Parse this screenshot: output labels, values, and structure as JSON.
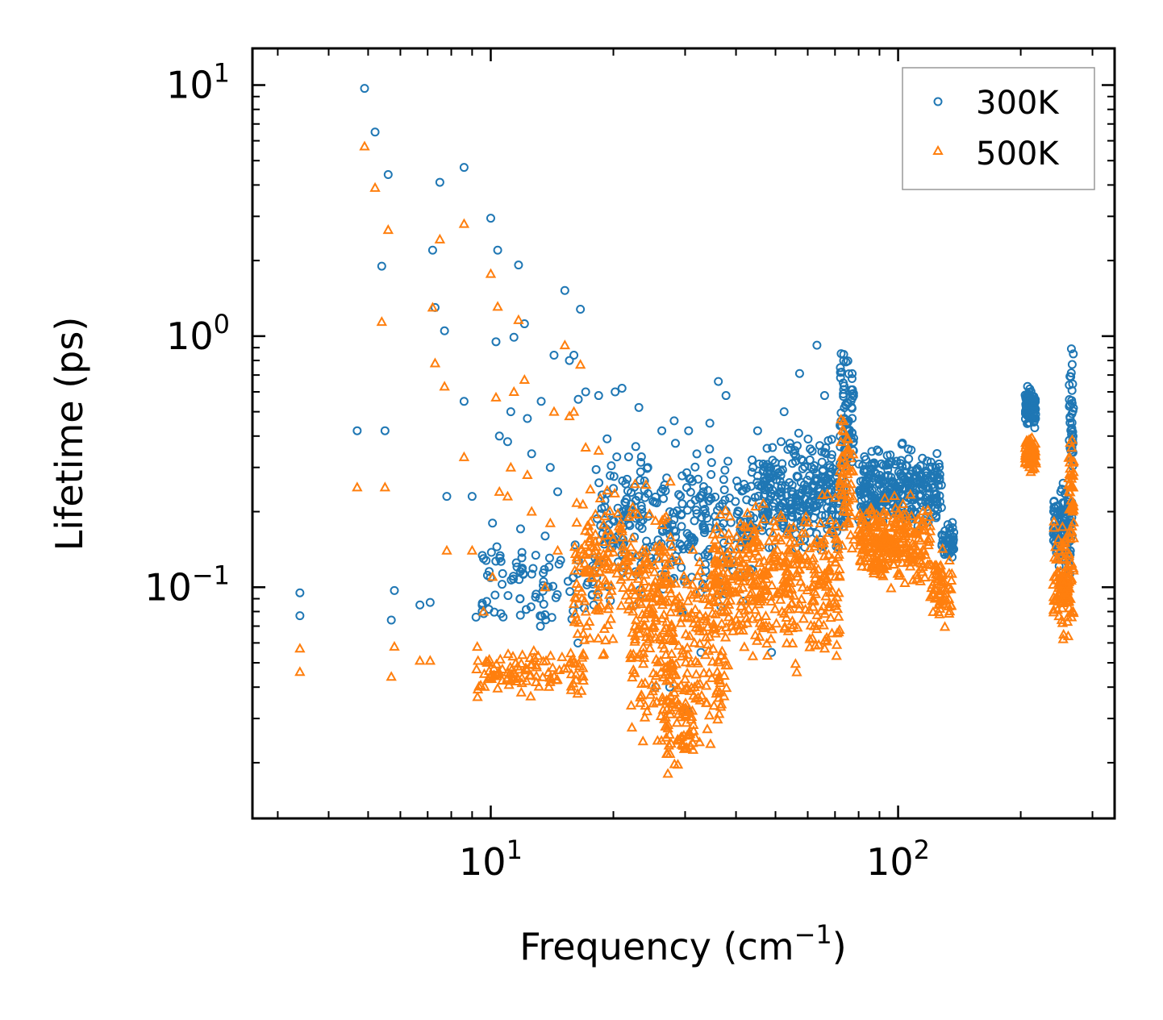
{
  "chart_data": {
    "type": "scatter",
    "xscale": "log",
    "yscale": "log",
    "xlim": [
      2.6,
      340
    ],
    "ylim": [
      0.012,
      14
    ],
    "xlabel": "Frequency (cm",
    "xlabel_sup": "−1",
    "xlabel_end": ")",
    "ylabel": "Lifetime (ps)",
    "x_major_ticks": [
      {
        "value": 10,
        "base": "10",
        "exp": "1"
      },
      {
        "value": 100,
        "base": "10",
        "exp": "2"
      }
    ],
    "y_major_ticks": [
      {
        "value": 0.1,
        "base": "10",
        "exp": "−1"
      },
      {
        "value": 1,
        "base": "10",
        "exp": "0"
      },
      {
        "value": 10,
        "base": "10",
        "exp": "1"
      }
    ],
    "legend_position": "top-right",
    "series": [
      {
        "name": "300K",
        "marker": "circle-open",
        "color": "#1f77b4",
        "clusters": [
          {
            "xmin": 18,
            "xmax": 45,
            "ymin": 0.07,
            "ymax": 0.45,
            "n": 320
          },
          {
            "xmin": 45,
            "xmax": 75,
            "ymin": 0.12,
            "ymax": 0.45,
            "n": 320
          },
          {
            "xmin": 72,
            "xmax": 78,
            "ymin": 0.2,
            "ymax": 1.05,
            "n": 70
          },
          {
            "xmin": 80,
            "xmax": 128,
            "ymin": 0.15,
            "ymax": 0.4,
            "n": 320
          },
          {
            "xmin": 128,
            "xmax": 137,
            "ymin": 0.12,
            "ymax": 0.2,
            "n": 40
          },
          {
            "xmin": 205,
            "xmax": 218,
            "ymin": 0.4,
            "ymax": 0.68,
            "n": 90
          },
          {
            "xmin": 240,
            "xmax": 268,
            "ymin": 0.1,
            "ymax": 0.3,
            "n": 120
          },
          {
            "xmin": 263,
            "xmax": 270,
            "ymin": 0.2,
            "ymax": 1.05,
            "n": 40
          },
          {
            "xmin": 9.5,
            "xmax": 18,
            "ymin": 0.055,
            "ymax": 0.2,
            "n": 90
          }
        ],
        "points": [
          [
            3.4,
            0.095
          ],
          [
            3.4,
            0.077
          ],
          [
            4.7,
            0.42
          ],
          [
            4.9,
            9.7
          ],
          [
            5.2,
            6.5
          ],
          [
            5.4,
            1.9
          ],
          [
            5.5,
            0.42
          ],
          [
            5.6,
            4.4
          ],
          [
            5.7,
            0.074
          ],
          [
            5.8,
            0.097
          ],
          [
            6.7,
            0.085
          ],
          [
            7.1,
            0.087
          ],
          [
            7.2,
            2.2
          ],
          [
            7.3,
            1.3
          ],
          [
            7.5,
            4.1
          ],
          [
            7.7,
            1.05
          ],
          [
            7.8,
            0.23
          ],
          [
            8.6,
            4.7
          ],
          [
            8.6,
            0.55
          ],
          [
            9.0,
            0.23
          ],
          [
            9.2,
            0.076
          ],
          [
            9.6,
            0.13
          ],
          [
            10.0,
            2.95
          ],
          [
            10.1,
            0.18
          ],
          [
            10.3,
            0.95
          ],
          [
            10.4,
            2.2
          ],
          [
            10.5,
            0.4
          ],
          [
            11.0,
            0.38
          ],
          [
            11.2,
            0.5
          ],
          [
            11.4,
            0.99
          ],
          [
            11.7,
            1.92
          ],
          [
            11.8,
            0.09
          ],
          [
            12.1,
            1.12
          ],
          [
            12.3,
            0.47
          ],
          [
            12.6,
            0.34
          ],
          [
            13.3,
            0.55
          ],
          [
            13.6,
            0.16
          ],
          [
            14.0,
            0.3
          ],
          [
            14.3,
            0.84
          ],
          [
            14.6,
            0.24
          ],
          [
            15.2,
            1.52
          ],
          [
            15.6,
            0.8
          ],
          [
            16.0,
            0.84
          ],
          [
            16.4,
            0.56
          ],
          [
            16.6,
            1.28
          ],
          [
            17.1,
            0.6
          ],
          [
            18.4,
            0.58
          ],
          [
            19.3,
            0.39
          ],
          [
            20.2,
            0.6
          ],
          [
            21.0,
            0.62
          ],
          [
            23.1,
            0.52
          ],
          [
            24.3,
            0.3
          ],
          [
            26.3,
            0.42
          ],
          [
            28.2,
            0.46
          ],
          [
            30.6,
            0.42
          ],
          [
            34.5,
            0.45
          ],
          [
            36.2,
            0.66
          ],
          [
            37.8,
            0.58
          ],
          [
            45.2,
            0.42
          ],
          [
            52.5,
            0.5
          ],
          [
            57.3,
            0.71
          ],
          [
            63.2,
            0.92
          ],
          [
            66.0,
            0.58
          ],
          [
            27.5,
            0.04
          ],
          [
            25.4,
            0.04
          ],
          [
            32.8,
            0.055
          ],
          [
            30.5,
            0.032
          ],
          [
            48.9,
            0.055
          ]
        ]
      },
      {
        "name": "500K",
        "marker": "triangle-open",
        "color": "#ff7f0e",
        "clusters": [
          {
            "xmin": 16,
            "xmax": 28,
            "ymin": 0.04,
            "ymax": 0.32,
            "n": 240
          },
          {
            "xmin": 22,
            "xmax": 38,
            "ymin": 0.017,
            "ymax": 0.2,
            "n": 260
          },
          {
            "xmin": 26,
            "xmax": 32,
            "ymin": 0.016,
            "ymax": 0.05,
            "n": 60
          },
          {
            "xmin": 35,
            "xmax": 72,
            "ymin": 0.04,
            "ymax": 0.28,
            "n": 420
          },
          {
            "xmin": 72,
            "xmax": 78,
            "ymin": 0.1,
            "ymax": 0.65,
            "n": 60
          },
          {
            "xmin": 80,
            "xmax": 120,
            "ymin": 0.09,
            "ymax": 0.25,
            "n": 280
          },
          {
            "xmin": 120,
            "xmax": 136,
            "ymin": 0.06,
            "ymax": 0.16,
            "n": 60
          },
          {
            "xmin": 205,
            "xmax": 218,
            "ymin": 0.28,
            "ymax": 0.42,
            "n": 70
          },
          {
            "xmin": 240,
            "xmax": 270,
            "ymin": 0.055,
            "ymax": 0.2,
            "n": 110
          },
          {
            "xmin": 262,
            "xmax": 270,
            "ymin": 0.1,
            "ymax": 0.65,
            "n": 40
          },
          {
            "xmin": 9.2,
            "xmax": 17,
            "ymin": 0.035,
            "ymax": 0.06,
            "n": 110
          }
        ],
        "points": [
          [
            3.4,
            0.057
          ],
          [
            3.4,
            0.046
          ],
          [
            4.7,
            0.25
          ],
          [
            4.9,
            5.7
          ],
          [
            5.2,
            3.9
          ],
          [
            5.4,
            1.14
          ],
          [
            5.5,
            0.25
          ],
          [
            5.6,
            2.65
          ],
          [
            5.7,
            0.044
          ],
          [
            5.8,
            0.058
          ],
          [
            6.7,
            0.051
          ],
          [
            7.1,
            0.051
          ],
          [
            7.2,
            1.3
          ],
          [
            7.3,
            0.78
          ],
          [
            7.5,
            2.43
          ],
          [
            7.7,
            0.63
          ],
          [
            7.8,
            0.14
          ],
          [
            8.6,
            2.8
          ],
          [
            8.6,
            0.33
          ],
          [
            9.0,
            0.14
          ],
          [
            9.6,
            0.08
          ],
          [
            10.0,
            1.77
          ],
          [
            10.1,
            0.11
          ],
          [
            10.3,
            0.57
          ],
          [
            10.4,
            1.31
          ],
          [
            10.5,
            0.24
          ],
          [
            11.0,
            0.23
          ],
          [
            11.2,
            0.3
          ],
          [
            11.4,
            0.6
          ],
          [
            11.7,
            1.16
          ],
          [
            12.1,
            0.67
          ],
          [
            12.3,
            0.28
          ],
          [
            12.6,
            0.2
          ],
          [
            13.6,
            0.1
          ],
          [
            14.0,
            0.18
          ],
          [
            14.3,
            0.5
          ],
          [
            14.6,
            0.14
          ],
          [
            15.2,
            0.92
          ],
          [
            15.6,
            0.48
          ],
          [
            16.0,
            0.5
          ],
          [
            16.6,
            0.77
          ],
          [
            17.1,
            0.36
          ],
          [
            18.4,
            0.35
          ]
        ]
      }
    ]
  }
}
